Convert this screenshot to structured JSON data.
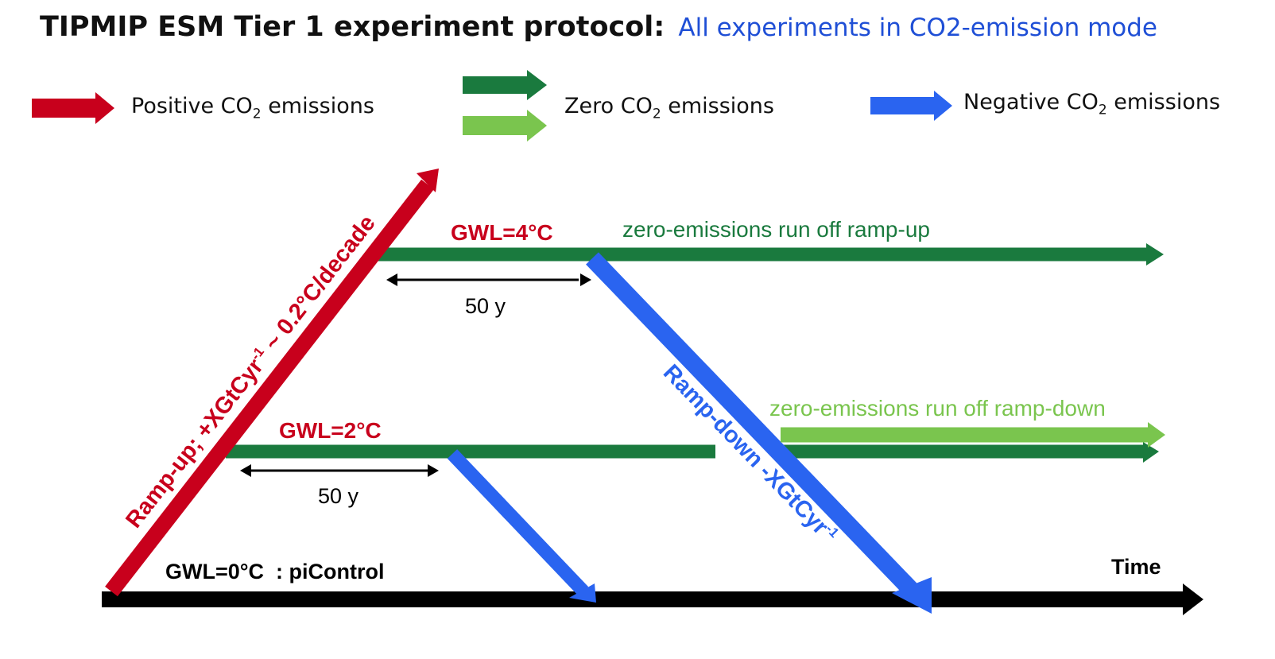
{
  "header": {
    "title": "TIPMIP ESM Tier 1 experiment protocol:",
    "subtitle": "All experiments in CO2-emission mode"
  },
  "legend": {
    "positive": {
      "pre": "Positive CO",
      "sub": "2",
      "post": " emissions"
    },
    "zero": {
      "pre": "Zero CO",
      "sub": "2",
      "post": " emissions"
    },
    "negative": {
      "pre": "Negative CO",
      "sub": "2",
      "post": " emissions"
    }
  },
  "diagram": {
    "gwl4": "GWL=4°C",
    "gwl2": "GWL=2°C",
    "gwl0": "GWL=0°C  : piControl",
    "time_label": "Time",
    "zero_rampup": "zero-emissions run off ramp-up",
    "zero_rampdown": "zero-emissions run off ramp-down",
    "duration_top": "50 y",
    "duration_bottom": "50 y",
    "rampup_text": "Ramp-up; +XGtCyr",
    "rampup_sup": "-1",
    "rampup_tail": " ~ 0.2°C/decade",
    "rampdown_text": "Ramp-down -XGtCyr",
    "rampdown_sup": "-1"
  },
  "colors": {
    "positive": "#c8001c",
    "zero_dark": "#1a7a3e",
    "zero_light": "#7ac54e",
    "negative": "#2a64f0",
    "axis": "#000000",
    "title_sub": "#1f4fd6"
  }
}
